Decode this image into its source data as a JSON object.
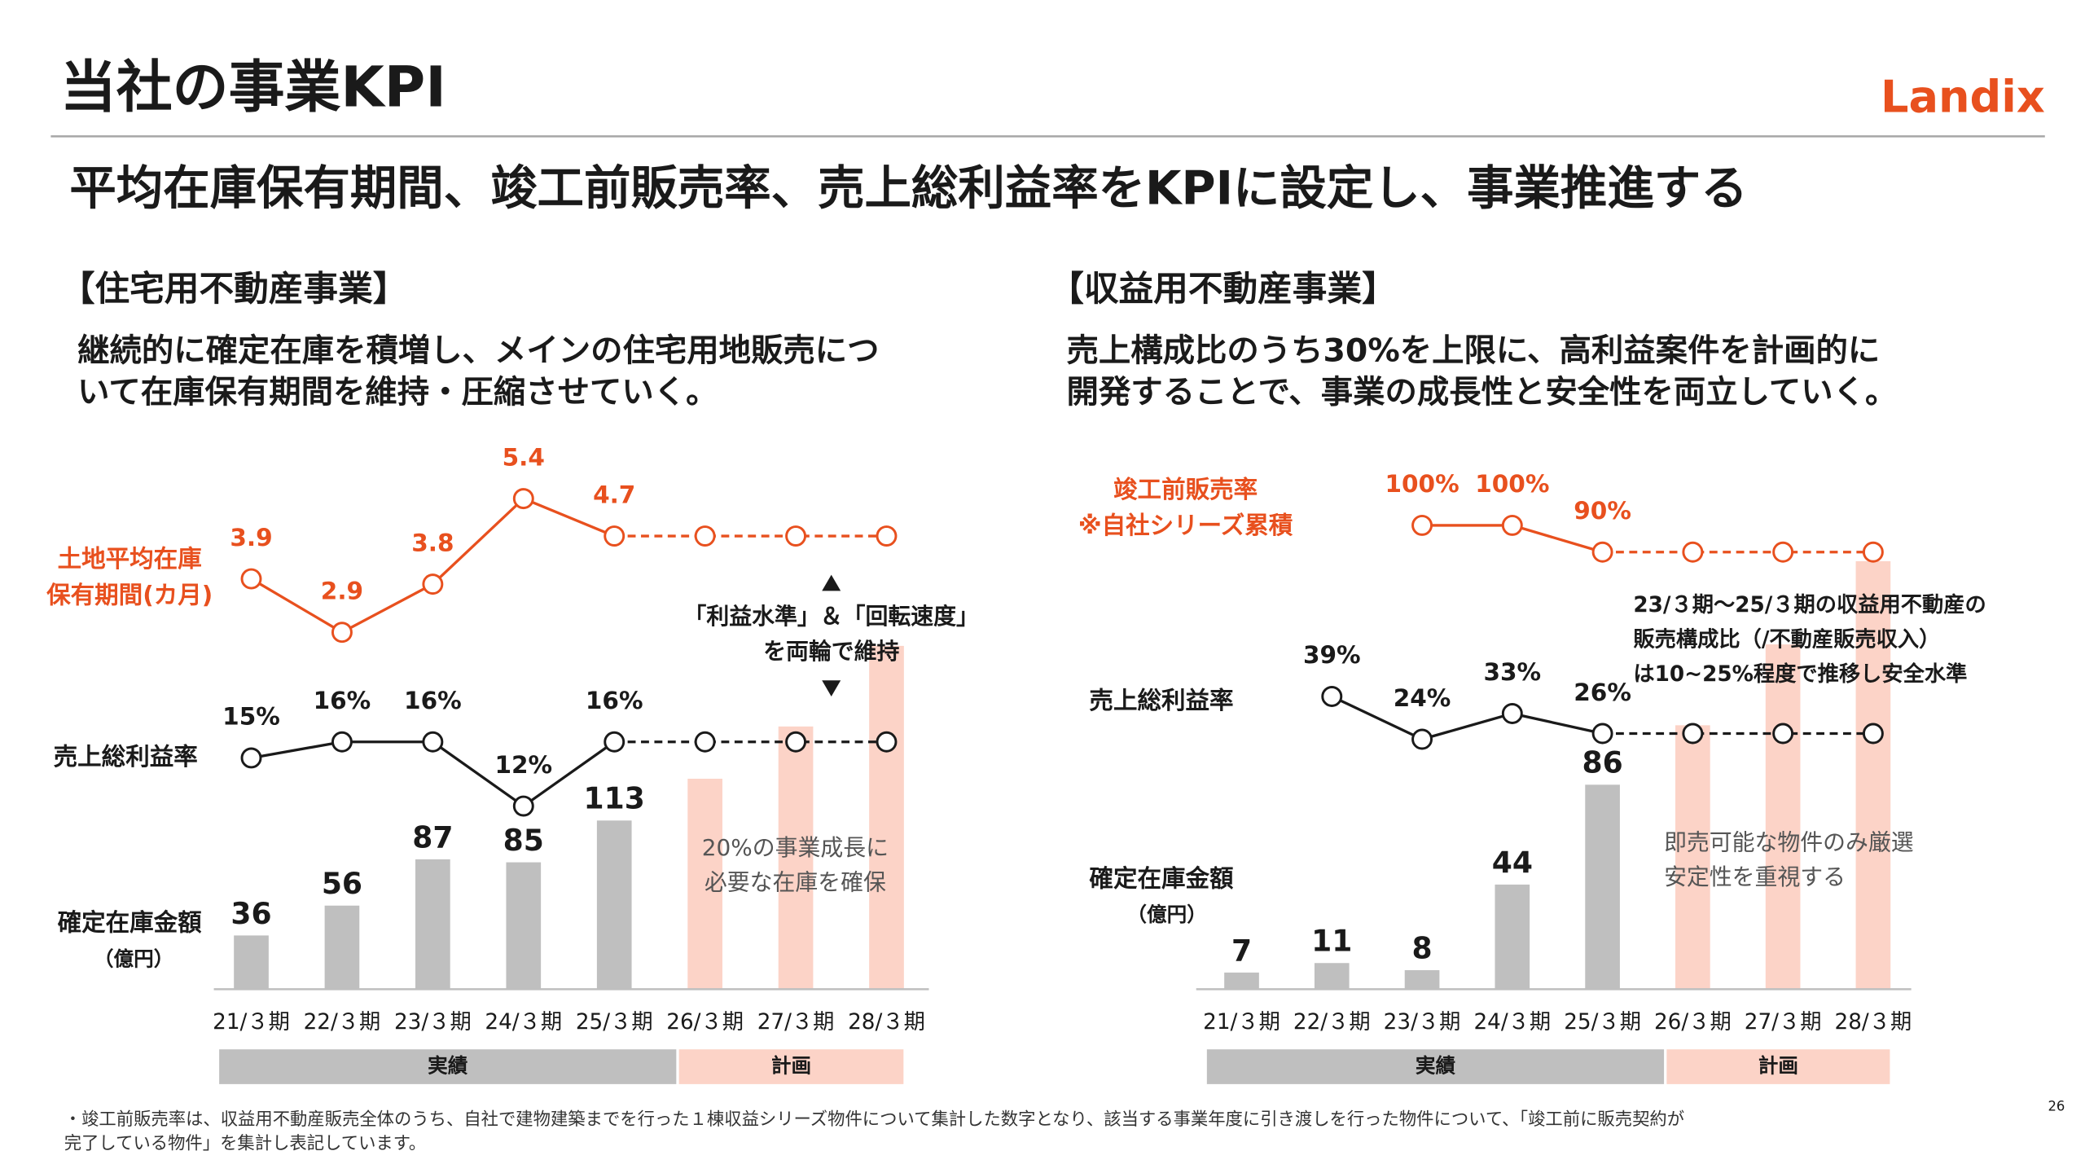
{
  "header": {
    "title": "当社の事業KPI",
    "logo": "Landix",
    "subtitle": "平均在庫保有期間、竣工前販売率、売上総利益率をKPIに設定し、事業推進する"
  },
  "page_number": "26",
  "footnote": [
    "・竣工前販売率は、収益用不動産販売全体のうち、自社で建物建築までを行った１棟収益シリーズ物件について集計した数字となり、該当する事業年度に引き渡しを行った物件について、「竣工前に販売契約が",
    "完了している物件」を集計し表記しています。"
  ],
  "chart_data": [
    {
      "type": "combo",
      "title": "【住宅用不動産事業】",
      "description": [
        "継続的に確定在庫を積増し、メインの住宅用地販売につ",
        "いて在庫保有期間を維持・圧縮させていく。"
      ],
      "categories": [
        "21/３期",
        "22/３期",
        "23/３期",
        "24/３期",
        "25/３期",
        "26/３期",
        "27/３期",
        "28/３期"
      ],
      "bar_label": "確定在庫金額",
      "bar_unit": "（億円）",
      "ylim": [
        0,
        360
      ],
      "series": [
        {
          "name": "実績",
          "type": "bar",
          "color": "#bfbfbf",
          "data_labels": true,
          "values": [
            36,
            56,
            87,
            85,
            113,
            null,
            null,
            null
          ]
        },
        {
          "name": "計画",
          "type": "bar",
          "color": "#fcd3c7",
          "data_labels": false,
          "values": [
            null,
            null,
            null,
            null,
            null,
            141,
            176,
            230
          ]
        },
        {
          "name": [
            "土地平均在庫",
            "保有期間(カ月)"
          ],
          "type": "line",
          "color": "#e8501e",
          "values": [
            3.9,
            2.9,
            3.8,
            5.4,
            4.7,
            4.7,
            4.7,
            4.7
          ]
        },
        {
          "name": "売上総利益率",
          "type": "line",
          "color": "#1a1a1a",
          "values": [
            15,
            16,
            16,
            12,
            16,
            16,
            16,
            16
          ],
          "value_labels": [
            "15%",
            "16%",
            "16%",
            "12%",
            "16%",
            null,
            null,
            null
          ]
        }
      ],
      "annotations": [
        [
          "「利益水準」＆「回転速度」",
          "を両輪で維持"
        ],
        [
          "20%の事業成長に",
          "必要な在庫を確保"
        ]
      ]
    },
    {
      "type": "combo",
      "title": "【収益用不動産事業】",
      "description": [
        "売上構成比のうち30%を上限に、高利益案件を計画的に",
        "開発することで、事業の成長性と安全性を両立していく。"
      ],
      "categories": [
        "21/３期",
        "22/３期",
        "23/３期",
        "24/３期",
        "25/３期",
        "26/３期",
        "27/３期",
        "28/３期"
      ],
      "bar_label": "確定在庫金額",
      "bar_unit": "（億円）",
      "ylim": [
        0,
        226
      ],
      "series": [
        {
          "name": "実績",
          "type": "bar",
          "color": "#bfbfbf",
          "data_labels": true,
          "values": [
            7,
            11,
            8,
            44,
            86,
            null,
            null,
            null
          ]
        },
        {
          "name": "計画",
          "type": "bar",
          "color": "#fcd3c7",
          "data_labels": false,
          "values": [
            null,
            null,
            null,
            null,
            null,
            111,
            145,
            180
          ]
        },
        {
          "name": [
            "竣工前販売率",
            "※自社シリーズ累積"
          ],
          "type": "line",
          "color": "#e8501e",
          "values": [
            null,
            null,
            100,
            100,
            90,
            90,
            90,
            90
          ],
          "value_labels": [
            null,
            null,
            "100%",
            "100%",
            "90%",
            null,
            null,
            null
          ]
        },
        {
          "name": "売上総利益率",
          "type": "line",
          "color": "#1a1a1a",
          "values": [
            null,
            39,
            24,
            33,
            26,
            26,
            26,
            26
          ],
          "value_labels": [
            null,
            "39%",
            "24%",
            "33%",
            "26%",
            null,
            null,
            null
          ]
        }
      ],
      "annotations": [
        [
          "23/３期～25/３期の収益用不動産の",
          "販売構成比（/不動産販売収入）",
          "は10~25%程度で推移し安全水準"
        ],
        [
          "即売可能な物件のみ厳選",
          "安定性を重視する"
        ]
      ]
    }
  ]
}
